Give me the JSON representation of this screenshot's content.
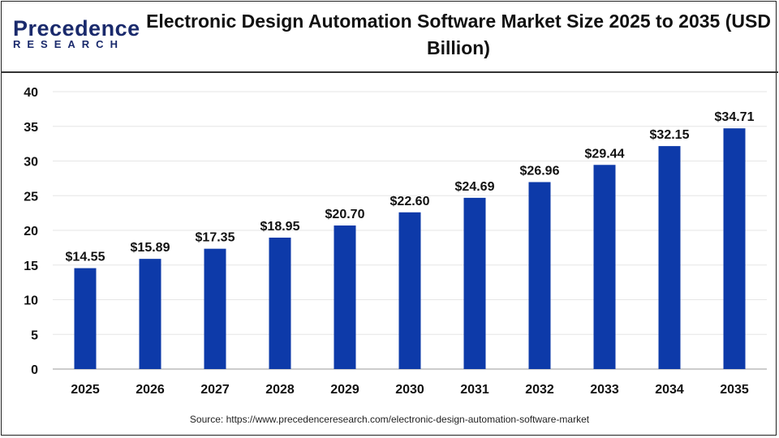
{
  "logo": {
    "line1": "Precedence",
    "line2": "RESEARCH"
  },
  "chart_data": {
    "type": "bar",
    "title": "Electronic Design Automation Software Market Size 2025 to 2035 (USD Billion)",
    "categories": [
      "2025",
      "2026",
      "2027",
      "2028",
      "2029",
      "2030",
      "2031",
      "2032",
      "2033",
      "2034",
      "2035"
    ],
    "values": [
      14.55,
      15.89,
      17.35,
      18.95,
      20.7,
      22.6,
      24.69,
      26.96,
      29.44,
      32.15,
      34.71
    ],
    "data_labels": [
      "$14.55",
      "$15.89",
      "$17.35",
      "$18.95",
      "$20.70",
      "$22.60",
      "$24.69",
      "$26.96",
      "$29.44",
      "$32.15",
      "$34.71"
    ],
    "yticks": [
      "0",
      "5",
      "10",
      "15",
      "20",
      "25",
      "30",
      "35",
      "40"
    ],
    "ylim": [
      0,
      40
    ],
    "xlabel": "",
    "ylabel": "",
    "grid": true,
    "bar_color": "#0d3aa9"
  },
  "source": "Source: https://www.precedenceresearch.com/electronic-design-automation-software-market"
}
